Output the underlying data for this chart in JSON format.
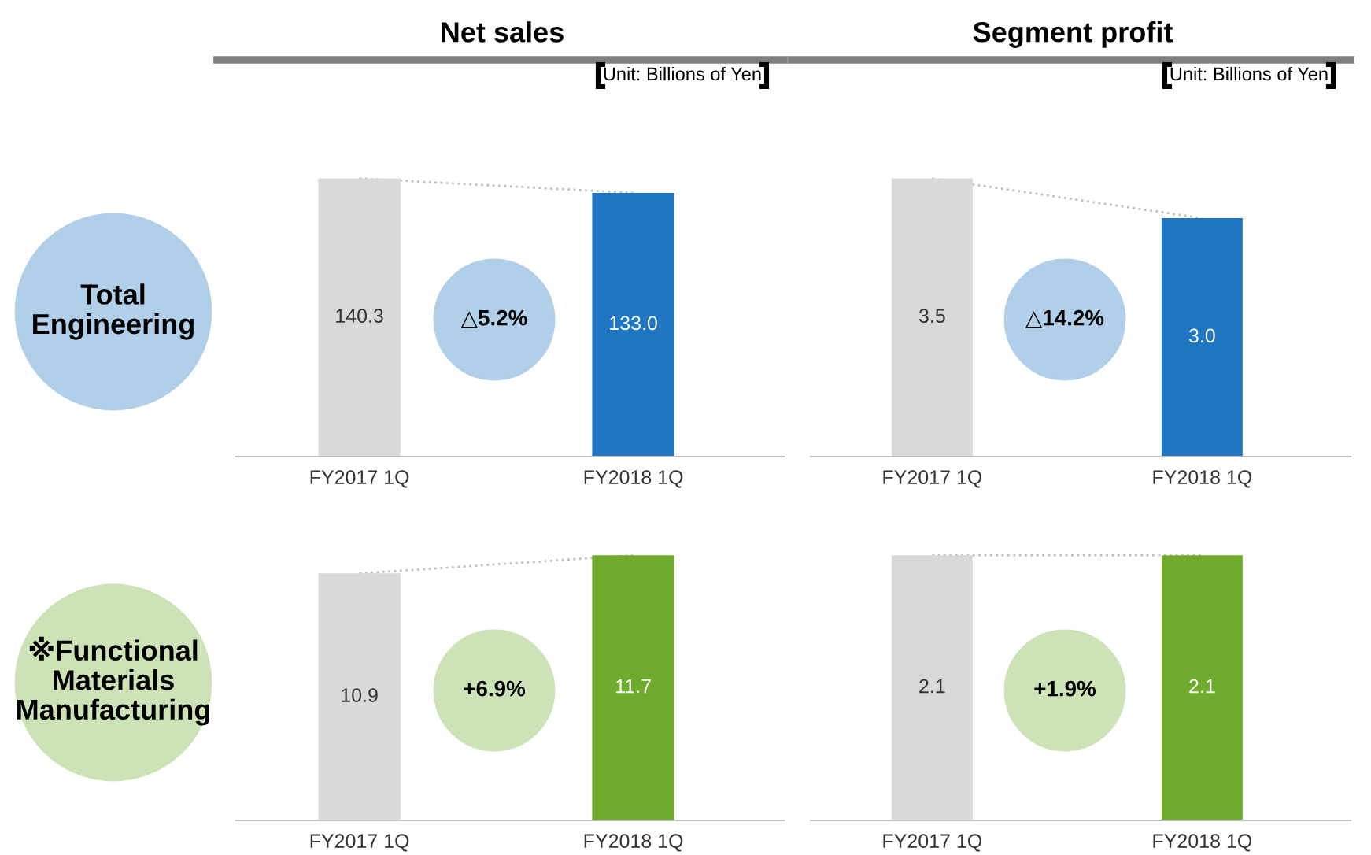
{
  "chart_data": [
    {
      "type": "bar",
      "title": "Net sales",
      "subtitle": "Unit: Billions of Yen",
      "categories": [
        "FY2017 1Q",
        "FY2018 1Q"
      ],
      "values": [
        140.3,
        133.0
      ],
      "value_labels": [
        "140.3",
        "133.0"
      ],
      "colors": [
        "#d9d9d9",
        "#1f75c1"
      ],
      "annotations": [
        "△5.2%",
        "Total\nEngineering"
      ]
    },
    {
      "type": "bar",
      "title": "Segment profit",
      "subtitle": "Unit: Billions of Yen",
      "categories": [
        "FY2017 1Q",
        "FY2018 1Q"
      ],
      "values": [
        3.5,
        3.0
      ],
      "value_labels": [
        "3.5",
        "3.0"
      ],
      "colors": [
        "#d9d9d9",
        "#1f75c1"
      ],
      "annotations": [
        "△14.2%"
      ]
    },
    {
      "type": "bar",
      "categories": [
        "FY2017 1Q",
        "FY2018 1Q"
      ],
      "values": [
        10.9,
        11.7
      ],
      "colors": [
        "#d9d9d9",
        "#6fab2d"
      ],
      "data_labels": true,
      "annotations": [
        "+6.9%",
        "※Functional\nMaterials\nManufacturing"
      ]
    },
    {
      "type": "bar",
      "categories": [
        "FY2017 1Q",
        "FY2018 1Q"
      ],
      "values": [
        2.1,
        2.1
      ],
      "colors": [
        "#d9d9d9",
        "#6fab2d"
      ],
      "data_labels": true,
      "annotations": [
        "+1.9%"
      ]
    }
  ]
}
